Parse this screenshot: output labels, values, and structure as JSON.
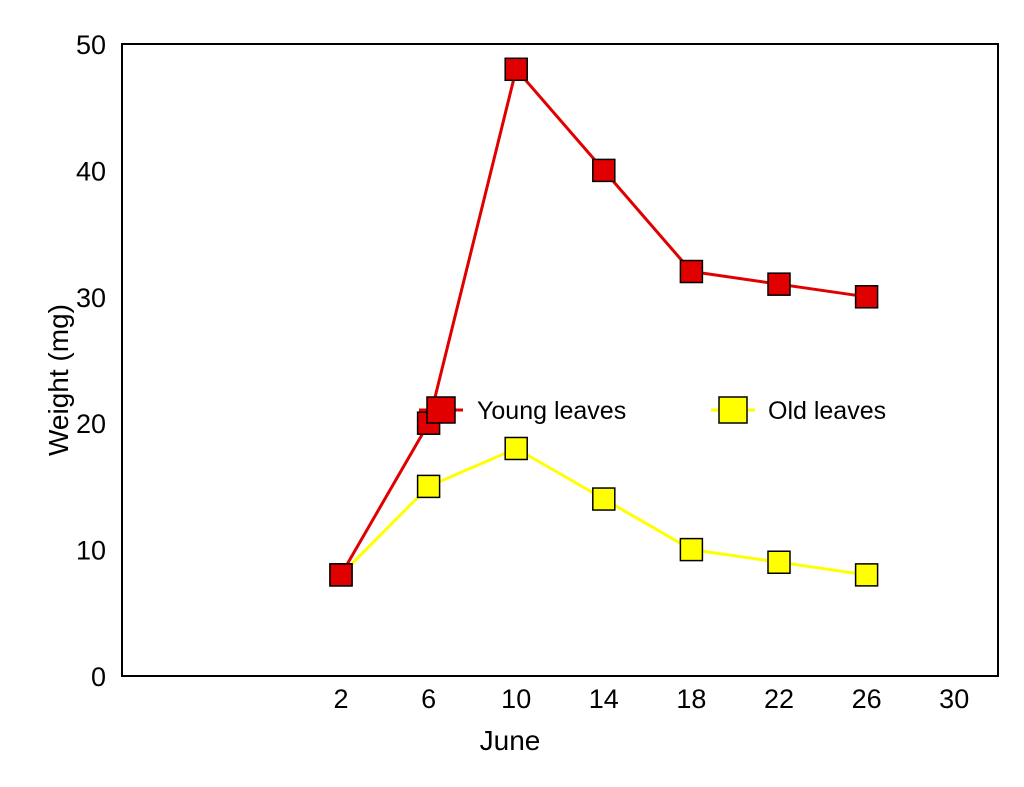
{
  "chart_data": {
    "type": "line",
    "title": "",
    "xlabel": "June",
    "ylabel": "Weight (mg)",
    "xlim": [
      -8,
      32
    ],
    "ylim": [
      0,
      50
    ],
    "xticks": [
      2,
      6,
      10,
      14,
      18,
      22,
      26,
      30
    ],
    "yticks": [
      0,
      10,
      20,
      30,
      40,
      50
    ],
    "grid": false,
    "legend_position": "center",
    "series": [
      {
        "name": "Young leaves",
        "color": "#e00000",
        "marker": "square",
        "x": [
          2,
          6,
          10,
          14,
          18,
          22,
          26
        ],
        "y": [
          8,
          20,
          48,
          40,
          32,
          31,
          30
        ]
      },
      {
        "name": "Old leaves",
        "color": "#ffff00",
        "marker": "square",
        "x": [
          2,
          6,
          10,
          14,
          18,
          22,
          26
        ],
        "y": [
          8,
          15,
          18,
          14,
          10,
          9,
          8
        ]
      }
    ]
  }
}
